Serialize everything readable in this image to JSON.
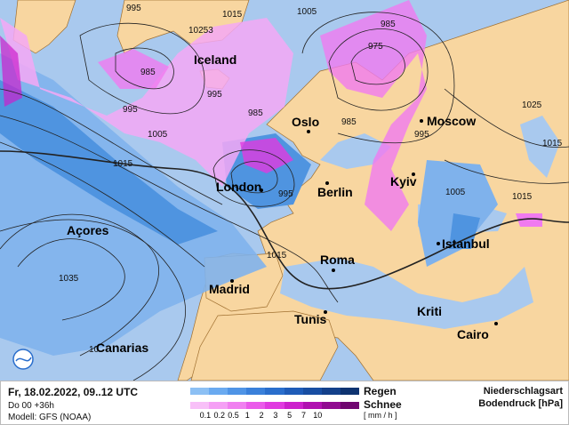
{
  "map": {
    "colors": {
      "ocean": "#a9c9ee",
      "land": "#f8d6a0",
      "rain": "#4f94e0",
      "rain_light": "#7fb2ec",
      "snow": "#f07af0",
      "snow_light": "#f5a8f5",
      "isobar": "#222222"
    },
    "cities": [
      {
        "name": "Iceland"
      },
      {
        "name": "Oslo"
      },
      {
        "name": "Moscow"
      },
      {
        "name": "London"
      },
      {
        "name": "Berlin"
      },
      {
        "name": "Kyiv"
      },
      {
        "name": "Açores"
      },
      {
        "name": "Istanbul"
      },
      {
        "name": "Roma"
      },
      {
        "name": "Madrid"
      },
      {
        "name": "Tunis"
      },
      {
        "name": "Kriti"
      },
      {
        "name": "Cairo"
      },
      {
        "name": "Canarias"
      }
    ],
    "isobar_labels": [
      "995",
      "1005",
      "1015",
      "10253",
      "985",
      "995",
      "1005",
      "1015",
      "995",
      "985",
      "985",
      "975",
      "985",
      "995",
      "1025",
      "1015",
      "1005",
      "1015",
      "995",
      "1035",
      "1015",
      "10"
    ]
  },
  "footer": {
    "date": "Fr, 18.02.2022, 09..12 UTC",
    "run": "Do 00 +36h",
    "model": "Modell: GFS (NOAA)",
    "rain_label": "Regen",
    "snow_label": "Schnee",
    "unit": "[ mm / h ]",
    "ticks": [
      "0.1",
      "0.2",
      "0.5",
      "1",
      "2",
      "3",
      "5",
      "7",
      "10"
    ],
    "rain_colors": [
      "#8cc0f4",
      "#6aaaf0",
      "#4f94e6",
      "#3a80da",
      "#2a6ecc",
      "#1f5cb8",
      "#184ea2",
      "#13408a",
      "#0e3370"
    ],
    "snow_colors": [
      "#f8c0f8",
      "#f5a0f5",
      "#f080f0",
      "#ea5aea",
      "#e03ae0",
      "#cc20cc",
      "#b010b0",
      "#900a90",
      "#700670"
    ],
    "title1": "Niederschlagsart",
    "title2": "Bodendruck [hPa]"
  }
}
